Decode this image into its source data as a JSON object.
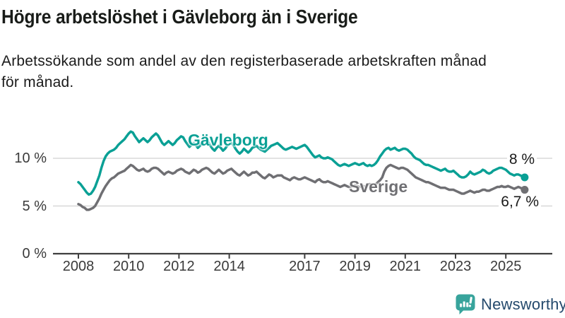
{
  "header": {
    "title": "Högre arbetslöshet i Gävleborg än i Sverige",
    "subtitle_lines": [
      "Arbetssökande som andel av den registerbaserade arbetskraften månad",
      "för månad."
    ]
  },
  "chart_data": {
    "type": "line",
    "title": "Högre arbetslöshet i Gävleborg än i Sverige",
    "xlabel": "",
    "ylabel": "Arbetssökande som andel av den registerbaserade arbetskraften",
    "x_unit": "month",
    "x_start_year": 2008,
    "x_end": "2025-10",
    "x_tick_years": [
      2008,
      2010,
      2012,
      2014,
      2017,
      2019,
      2021,
      2023,
      2025
    ],
    "x_tick_labels": [
      "2008",
      "2010",
      "2012",
      "2014",
      "2017",
      "2019",
      "2021",
      "2023",
      "2025"
    ],
    "y_ticks": [
      {
        "value": 0,
        "label": "0 %"
      },
      {
        "value": 5,
        "label": "5 %"
      },
      {
        "value": 10,
        "label": "10 %"
      }
    ],
    "ylim": [
      0,
      13.5
    ],
    "grid": "horizontal",
    "legend_position": "inline-labels",
    "series": [
      {
        "name": "Gävleborg",
        "label_text": "Gävleborg",
        "end_label": "8 %",
        "end_value": 8.0,
        "color": "#0aa095",
        "values": [
          7.5,
          7.3,
          7.0,
          6.7,
          6.4,
          6.2,
          6.3,
          6.6,
          7.0,
          7.6,
          8.2,
          9.0,
          9.7,
          10.2,
          10.5,
          10.7,
          10.8,
          10.9,
          11.1,
          11.4,
          11.6,
          11.8,
          12.0,
          12.3,
          12.6,
          12.8,
          12.7,
          12.3,
          12.0,
          11.7,
          11.9,
          12.1,
          11.9,
          11.7,
          11.9,
          12.2,
          12.4,
          12.6,
          12.4,
          12.0,
          11.6,
          11.4,
          11.6,
          11.8,
          11.6,
          11.4,
          11.6,
          11.9,
          12.1,
          12.3,
          12.2,
          11.8,
          11.5,
          11.2,
          11.4,
          11.6,
          11.4,
          11.1,
          11.3,
          11.6,
          11.8,
          11.9,
          11.7,
          11.3,
          11.0,
          10.8,
          11.1,
          11.3,
          11.1,
          10.8,
          11.0,
          11.3,
          11.5,
          11.6,
          11.4,
          11.0,
          10.7,
          10.5,
          10.7,
          11.0,
          10.8,
          10.6,
          10.8,
          11.1,
          11.2,
          11.3,
          11.1,
          10.9,
          10.8,
          10.7,
          10.9,
          11.1,
          11.3,
          11.4,
          11.5,
          11.6,
          11.4,
          11.2,
          11.0,
          10.9,
          11.0,
          11.1,
          11.2,
          11.1,
          11.0,
          11.1,
          11.2,
          11.3,
          11.4,
          11.2,
          10.9,
          10.6,
          10.3,
          10.1,
          10.2,
          10.3,
          10.1,
          10.0,
          10.0,
          10.1,
          10.0,
          9.9,
          9.7,
          9.5,
          9.3,
          9.2,
          9.3,
          9.4,
          9.3,
          9.2,
          9.3,
          9.4,
          9.5,
          9.4,
          9.3,
          9.4,
          9.5,
          9.3,
          9.2,
          9.3,
          9.2,
          9.3,
          9.5,
          9.8,
          10.2,
          10.5,
          10.8,
          11.0,
          11.1,
          10.9,
          11.0,
          11.1,
          10.9,
          10.8,
          10.9,
          11.0,
          11.0,
          10.9,
          10.7,
          10.5,
          10.2,
          10.0,
          9.9,
          9.8,
          9.6,
          9.4,
          9.3,
          9.3,
          9.2,
          9.1,
          9.0,
          8.9,
          8.8,
          8.7,
          8.8,
          8.9,
          8.7,
          8.6,
          8.6,
          8.7,
          8.5,
          8.3,
          8.1,
          8.0,
          8.0,
          8.1,
          8.3,
          8.6,
          8.4,
          8.3,
          8.4,
          8.5,
          8.6,
          8.8,
          8.7,
          8.5,
          8.4,
          8.5,
          8.7,
          8.8,
          8.9,
          9.0,
          9.0,
          8.9,
          8.8,
          8.6,
          8.4,
          8.3,
          8.2,
          8.3,
          8.3,
          8.2,
          8.1,
          8.0
        ]
      },
      {
        "name": "Sverige",
        "label_text": "Sverige",
        "end_label": "6,7 %",
        "end_value": 6.7,
        "color": "#6f6f73",
        "values": [
          5.2,
          5.1,
          4.9,
          4.8,
          4.6,
          4.6,
          4.7,
          4.8,
          5.0,
          5.4,
          5.8,
          6.3,
          6.7,
          7.1,
          7.4,
          7.7,
          7.9,
          8.0,
          8.2,
          8.4,
          8.5,
          8.6,
          8.7,
          8.9,
          9.1,
          9.3,
          9.2,
          9.0,
          8.8,
          8.7,
          8.8,
          8.9,
          8.7,
          8.6,
          8.7,
          8.9,
          9.0,
          9.0,
          8.9,
          8.7,
          8.5,
          8.3,
          8.5,
          8.6,
          8.5,
          8.4,
          8.5,
          8.7,
          8.8,
          8.9,
          8.8,
          8.6,
          8.5,
          8.4,
          8.6,
          8.8,
          8.7,
          8.5,
          8.6,
          8.8,
          8.9,
          9.0,
          8.9,
          8.7,
          8.5,
          8.4,
          8.6,
          8.8,
          8.6,
          8.4,
          8.5,
          8.7,
          8.8,
          8.9,
          8.7,
          8.5,
          8.3,
          8.2,
          8.4,
          8.6,
          8.4,
          8.2,
          8.3,
          8.5,
          8.5,
          8.6,
          8.4,
          8.2,
          8.0,
          7.9,
          8.1,
          8.3,
          8.2,
          8.0,
          8.1,
          8.2,
          8.2,
          8.2,
          8.0,
          7.9,
          7.8,
          7.7,
          7.9,
          8.0,
          7.9,
          7.8,
          7.8,
          7.9,
          8.0,
          7.9,
          7.8,
          7.7,
          7.6,
          7.5,
          7.7,
          7.8,
          7.6,
          7.5,
          7.5,
          7.6,
          7.5,
          7.4,
          7.3,
          7.2,
          7.1,
          7.0,
          7.1,
          7.2,
          7.1,
          7.0,
          7.0,
          7.1,
          7.2,
          7.1,
          7.0,
          7.0,
          7.1,
          7.0,
          7.2,
          7.3,
          7.2,
          7.2,
          7.3,
          7.5,
          7.7,
          8.0,
          8.6,
          9.0,
          9.2,
          9.3,
          9.2,
          9.1,
          9.0,
          8.9,
          9.0,
          9.0,
          8.9,
          8.8,
          8.6,
          8.4,
          8.2,
          8.0,
          7.9,
          7.8,
          7.7,
          7.6,
          7.5,
          7.5,
          7.4,
          7.3,
          7.2,
          7.1,
          7.0,
          6.9,
          6.9,
          6.9,
          6.8,
          6.7,
          6.7,
          6.7,
          6.6,
          6.5,
          6.4,
          6.3,
          6.3,
          6.4,
          6.5,
          6.6,
          6.5,
          6.4,
          6.5,
          6.5,
          6.6,
          6.7,
          6.7,
          6.6,
          6.6,
          6.7,
          6.8,
          6.9,
          7.0,
          7.0,
          7.1,
          7.0,
          7.0,
          7.1,
          7.0,
          6.9,
          6.8,
          6.9,
          7.0,
          6.9,
          6.8,
          6.7
        ]
      }
    ]
  },
  "colors": {
    "gavleborg": "#0aa095",
    "sverige": "#6f6f73",
    "gridline": "#d8d8d8",
    "axis": "#3f3f3f",
    "axis_text": "#3a3a3a",
    "title_text": "#191c19",
    "logo_icon": "#38a49c",
    "logo_text": "#254a6d"
  },
  "footer": {
    "brand": "Newsworthy"
  }
}
